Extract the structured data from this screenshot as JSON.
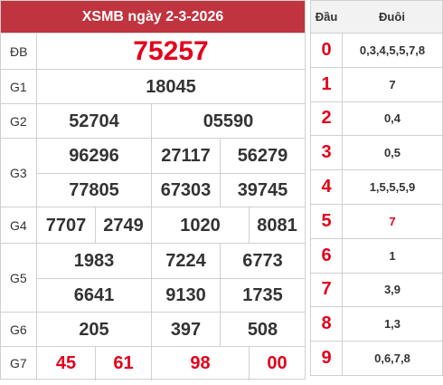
{
  "results": {
    "title": "XSMB ngày 2-3-2026",
    "prizes": {
      "db": {
        "label": "ĐB",
        "numbers": [
          "75257"
        ]
      },
      "g1": {
        "label": "G1",
        "numbers": [
          "18045"
        ]
      },
      "g2": {
        "label": "G2",
        "numbers": [
          "52704",
          "05590"
        ]
      },
      "g3": {
        "label": "G3",
        "numbers": [
          "96296",
          "27117",
          "56279",
          "77805",
          "67303",
          "39745"
        ]
      },
      "g4": {
        "label": "G4",
        "numbers": [
          "7707",
          "2749",
          "1020",
          "8081"
        ]
      },
      "g5": {
        "label": "G5",
        "numbers": [
          "1983",
          "7224",
          "6773",
          "6641",
          "9130",
          "1735"
        ]
      },
      "g6": {
        "label": "G6",
        "numbers": [
          "205",
          "397",
          "508"
        ]
      },
      "g7": {
        "label": "G7",
        "numbers": [
          "45",
          "61",
          "98",
          "00"
        ]
      }
    }
  },
  "dauduoi": {
    "head_label": "Đầu",
    "tail_label": "Đuôi",
    "rows": [
      {
        "head": "0",
        "tail": "0,3,4,5,5,7,8"
      },
      {
        "head": "1",
        "tail": "7"
      },
      {
        "head": "2",
        "tail": "0,4"
      },
      {
        "head": "3",
        "tail": "0,5"
      },
      {
        "head": "4",
        "tail": "1,5,5,5,9"
      },
      {
        "head": "5",
        "tail": "7",
        "highlight": true
      },
      {
        "head": "6",
        "tail": "1"
      },
      {
        "head": "7",
        "tail": "3,9"
      },
      {
        "head": "8",
        "tail": "1,3"
      },
      {
        "head": "9",
        "tail": "0,6,7,8"
      }
    ]
  },
  "colors": {
    "header_red": "#c0343f",
    "number_red": "#e3001b",
    "border": "#d0d0d0"
  }
}
